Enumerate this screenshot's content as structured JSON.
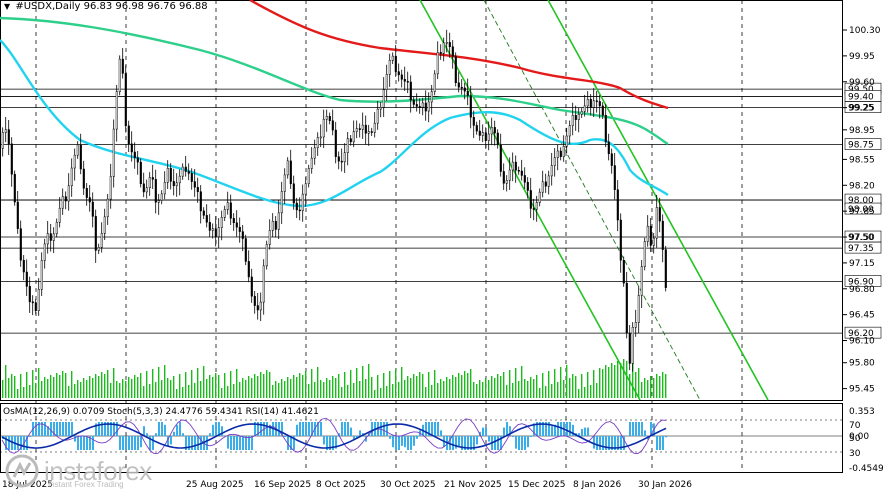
{
  "header": {
    "symbol": "#USDX,Daily",
    "ohlc": "96.83 96.98 96.76 96.88"
  },
  "indicators": {
    "osma": "OsMA(12,26,9) 0.0709",
    "stoch": "Stoch(5,3,3) 24.4776 59.4341",
    "rsi": "RSI(14) 41.4621"
  },
  "branding": {
    "logo": "instaforex",
    "tagline": "Instant Forex Trading"
  },
  "chart_data": {
    "type": "candlestick",
    "price_ticks": [
      "100.30",
      "99.95",
      "99.60",
      "99.25",
      "98.95",
      "98.55",
      "98.20",
      "97.85",
      "97.50",
      "97.15",
      "96.80",
      "96.45",
      "96.10",
      "95.80",
      "95.45"
    ],
    "ylim": [
      95.32,
      100.58
    ],
    "level_labels": [
      "99.50",
      "99.40",
      "99.25",
      "98.75",
      "98.00",
      "98.00",
      "97.50",
      "97.35",
      "96.90",
      "96.20"
    ],
    "level_values": [
      99.5,
      99.4,
      99.25,
      98.75,
      98.0,
      98.0,
      97.5,
      97.35,
      96.9,
      96.2
    ],
    "date_labels": [
      "18 Jul 2025",
      "25 Aug 2025",
      "16 Sep 2025",
      "8 Oct 2025",
      "30 Oct 2025",
      "21 Nov 2025",
      "15 Dec 2025",
      "8 Jan 2026",
      "30 Jan 2026"
    ],
    "indicator_ticks": [
      "0.353",
      "70",
      "50",
      "0.00",
      "30",
      "-0.4549"
    ],
    "close_path": [
      [
        0,
        98.7
      ],
      [
        6,
        99.1
      ],
      [
        12,
        98.2
      ],
      [
        18,
        97.4
      ],
      [
        24,
        97.0
      ],
      [
        30,
        96.5
      ],
      [
        36,
        96.6
      ],
      [
        42,
        97.3
      ],
      [
        48,
        97.5
      ],
      [
        54,
        97.6
      ],
      [
        60,
        97.9
      ],
      [
        66,
        98.1
      ],
      [
        72,
        98.5
      ],
      [
        78,
        98.7
      ],
      [
        84,
        98.1
      ],
      [
        90,
        97.9
      ],
      [
        96,
        97.3
      ],
      [
        102,
        97.6
      ],
      [
        108,
        98.0
      ],
      [
        114,
        99.2
      ],
      [
        120,
        100.0
      ],
      [
        126,
        98.9
      ],
      [
        132,
        98.6
      ],
      [
        138,
        98.4
      ],
      [
        144,
        98.1
      ],
      [
        150,
        98.3
      ],
      [
        156,
        98.0
      ],
      [
        162,
        98.1
      ],
      [
        168,
        98.4
      ],
      [
        174,
        98.2
      ],
      [
        180,
        98.3
      ],
      [
        186,
        98.5
      ],
      [
        192,
        98.2
      ],
      [
        198,
        98.0
      ],
      [
        204,
        97.8
      ],
      [
        210,
        97.5
      ],
      [
        216,
        97.6
      ],
      [
        222,
        97.8
      ],
      [
        228,
        97.9
      ],
      [
        234,
        97.7
      ],
      [
        240,
        97.5
      ],
      [
        246,
        97.2
      ],
      [
        252,
        96.6
      ],
      [
        258,
        96.4
      ],
      [
        264,
        97.3
      ],
      [
        270,
        97.6
      ],
      [
        276,
        97.7
      ],
      [
        282,
        98.2
      ],
      [
        288,
        98.5
      ],
      [
        294,
        97.9
      ],
      [
        300,
        97.8
      ],
      [
        306,
        98.4
      ],
      [
        312,
        98.6
      ],
      [
        318,
        98.8
      ],
      [
        324,
        99.2
      ],
      [
        330,
        99.0
      ],
      [
        336,
        98.6
      ],
      [
        342,
        98.5
      ],
      [
        348,
        98.8
      ],
      [
        354,
        99.0
      ],
      [
        360,
        98.9
      ],
      [
        366,
        99.0
      ],
      [
        372,
        98.9
      ],
      [
        378,
        99.2
      ],
      [
        384,
        99.6
      ],
      [
        390,
        99.9
      ],
      [
        396,
        99.8
      ],
      [
        402,
        99.6
      ],
      [
        408,
        99.5
      ],
      [
        414,
        99.3
      ],
      [
        420,
        99.2
      ],
      [
        426,
        99.3
      ],
      [
        432,
        99.5
      ],
      [
        438,
        100.0
      ],
      [
        444,
        100.2
      ],
      [
        450,
        100.0
      ],
      [
        456,
        99.6
      ],
      [
        462,
        99.5
      ],
      [
        468,
        99.3
      ],
      [
        474,
        99.0
      ],
      [
        480,
        98.8
      ],
      [
        486,
        98.9
      ],
      [
        492,
        99.0
      ],
      [
        498,
        98.6
      ],
      [
        504,
        98.2
      ],
      [
        510,
        98.4
      ],
      [
        516,
        98.5
      ],
      [
        522,
        98.3
      ],
      [
        528,
        98.0
      ],
      [
        534,
        97.9
      ],
      [
        540,
        98.1
      ],
      [
        546,
        98.3
      ],
      [
        552,
        98.5
      ],
      [
        558,
        98.6
      ],
      [
        564,
        98.8
      ],
      [
        570,
        99.0
      ],
      [
        576,
        99.2
      ],
      [
        582,
        99.2
      ],
      [
        588,
        99.3
      ],
      [
        594,
        99.4
      ],
      [
        600,
        99.2
      ],
      [
        606,
        98.8
      ],
      [
        612,
        98.4
      ],
      [
        618,
        97.5
      ],
      [
        624,
        96.8
      ],
      [
        628,
        95.6
      ],
      [
        632,
        96.2
      ],
      [
        636,
        96.5
      ],
      [
        640,
        97.0
      ],
      [
        646,
        97.6
      ],
      [
        652,
        97.4
      ],
      [
        656,
        97.9
      ],
      [
        660,
        97.6
      ],
      [
        664,
        96.9
      ],
      [
        668,
        96.88
      ]
    ]
  },
  "colors": {
    "ma_red": "#e41a1a",
    "ma_green": "#2ecf8a",
    "ma_cyan": "#22d3f0",
    "channel": "#22c422",
    "bars": "#1cbb1c",
    "osma": "#3aaee8",
    "signal": "#0a2aa8"
  }
}
